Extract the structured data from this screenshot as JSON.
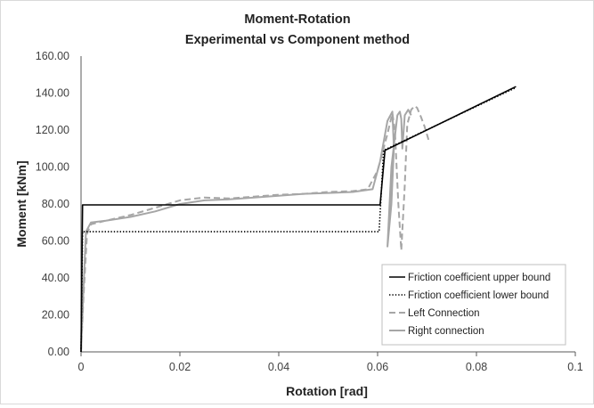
{
  "chart_data": {
    "type": "line",
    "title": "Moment-Rotation",
    "subtitle": "Experimental vs Component method",
    "xlabel": "Rotation [rad]",
    "ylabel": "Moment [kNm]",
    "xlim": [
      0,
      0.1
    ],
    "ylim": [
      0,
      160
    ],
    "x_ticks": [
      "0",
      "0.02",
      "0.04",
      "0.06",
      "0.08",
      "0.1"
    ],
    "y_ticks": [
      "0.00",
      "20.00",
      "40.00",
      "60.00",
      "80.00",
      "100.00",
      "120.00",
      "140.00",
      "160.00"
    ],
    "grid": "none",
    "legend_position": "bottom-right",
    "series": [
      {
        "name": "Friction coefficient upper bound",
        "color": "#000000",
        "style": "solid",
        "points": [
          [
            0,
            0
          ],
          [
            0.0003,
            79.5
          ],
          [
            0.0605,
            79.5
          ],
          [
            0.0615,
            109
          ],
          [
            0.088,
            143.5
          ]
        ]
      },
      {
        "name": "Friction coefficient lower bound",
        "color": "#000000",
        "style": "dotted",
        "points": [
          [
            0,
            0
          ],
          [
            0.0003,
            65
          ],
          [
            0.0603,
            65
          ],
          [
            0.0612,
            109
          ],
          [
            0.088,
            143
          ]
        ]
      },
      {
        "name": "Left Connection",
        "color": "#a6a6a6",
        "style": "dashed",
        "points": [
          [
            0,
            0
          ],
          [
            0.0005,
            30
          ],
          [
            0.0012,
            64
          ],
          [
            0.002,
            69
          ],
          [
            0.005,
            71
          ],
          [
            0.01,
            74
          ],
          [
            0.015,
            78
          ],
          [
            0.02,
            82
          ],
          [
            0.025,
            83.5
          ],
          [
            0.03,
            83
          ],
          [
            0.035,
            84
          ],
          [
            0.04,
            85
          ],
          [
            0.045,
            85.5
          ],
          [
            0.05,
            86.5
          ],
          [
            0.055,
            87
          ],
          [
            0.058,
            88
          ],
          [
            0.06,
            98
          ],
          [
            0.062,
            118
          ],
          [
            0.063,
            129
          ],
          [
            0.0635,
            120
          ],
          [
            0.0642,
            80
          ],
          [
            0.0648,
            55
          ],
          [
            0.0655,
            90
          ],
          [
            0.066,
            123
          ],
          [
            0.0668,
            131
          ],
          [
            0.0675,
            133
          ],
          [
            0.068,
            132
          ],
          [
            0.0688,
            127
          ],
          [
            0.0695,
            122
          ],
          [
            0.0705,
            113
          ]
        ]
      },
      {
        "name": "Right connection",
        "color": "#a6a6a6",
        "style": "solid",
        "points": [
          [
            0,
            0
          ],
          [
            0.0005,
            35
          ],
          [
            0.001,
            65
          ],
          [
            0.002,
            70
          ],
          [
            0.005,
            71
          ],
          [
            0.01,
            73
          ],
          [
            0.015,
            76
          ],
          [
            0.02,
            80
          ],
          [
            0.025,
            82
          ],
          [
            0.03,
            82.5
          ],
          [
            0.035,
            83.5
          ],
          [
            0.04,
            84.5
          ],
          [
            0.045,
            85.5
          ],
          [
            0.05,
            86
          ],
          [
            0.055,
            86.5
          ],
          [
            0.059,
            88
          ],
          [
            0.0605,
            103
          ],
          [
            0.062,
            125
          ],
          [
            0.063,
            130
          ],
          [
            0.0633,
            110
          ],
          [
            0.0628,
            80
          ],
          [
            0.062,
            57
          ],
          [
            0.0628,
            100
          ],
          [
            0.064,
            128
          ],
          [
            0.0645,
            130
          ],
          [
            0.0648,
            126
          ],
          [
            0.065,
            110
          ],
          [
            0.0655,
            128
          ],
          [
            0.0662,
            131
          ],
          [
            0.0668,
            128
          ]
        ]
      }
    ]
  }
}
